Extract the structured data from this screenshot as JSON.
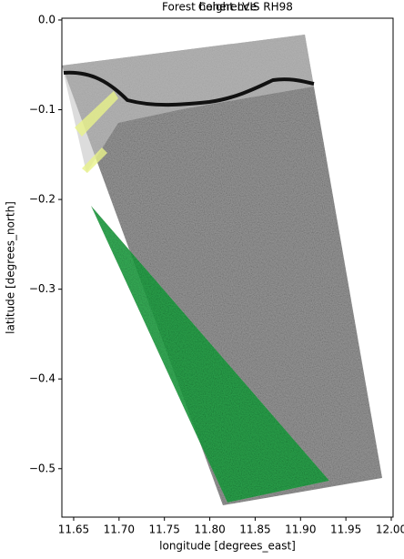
{
  "chart_data": {
    "type": "image",
    "titles": [
      "Forest height LVIS RH98",
      "Coherence"
    ],
    "xlabel": "longitude [degrees_east]",
    "ylabel": "latitude [degrees_north]",
    "xlim": [
      11.637,
      12.002
    ],
    "ylim": [
      -0.554,
      0.002
    ],
    "xticks": [
      {
        "value": 11.65,
        "label": "11.65"
      },
      {
        "value": 11.7,
        "label": "11.70"
      },
      {
        "value": 11.75,
        "label": "11.75"
      },
      {
        "value": 11.8,
        "label": "11.80"
      },
      {
        "value": 11.85,
        "label": "11.85"
      },
      {
        "value": 11.9,
        "label": "11.90"
      },
      {
        "value": 11.95,
        "label": "11.95"
      },
      {
        "value": 12.0,
        "label": "12.00"
      }
    ],
    "yticks": [
      {
        "value": 0,
        "label": "0.0"
      },
      {
        "value": -0.1,
        "label": "−0.1"
      },
      {
        "value": -0.2,
        "label": "−0.2"
      },
      {
        "value": -0.3,
        "label": "−0.3"
      },
      {
        "value": -0.4,
        "label": "−0.4"
      },
      {
        "value": -0.5,
        "label": "−0.5"
      }
    ]
  }
}
